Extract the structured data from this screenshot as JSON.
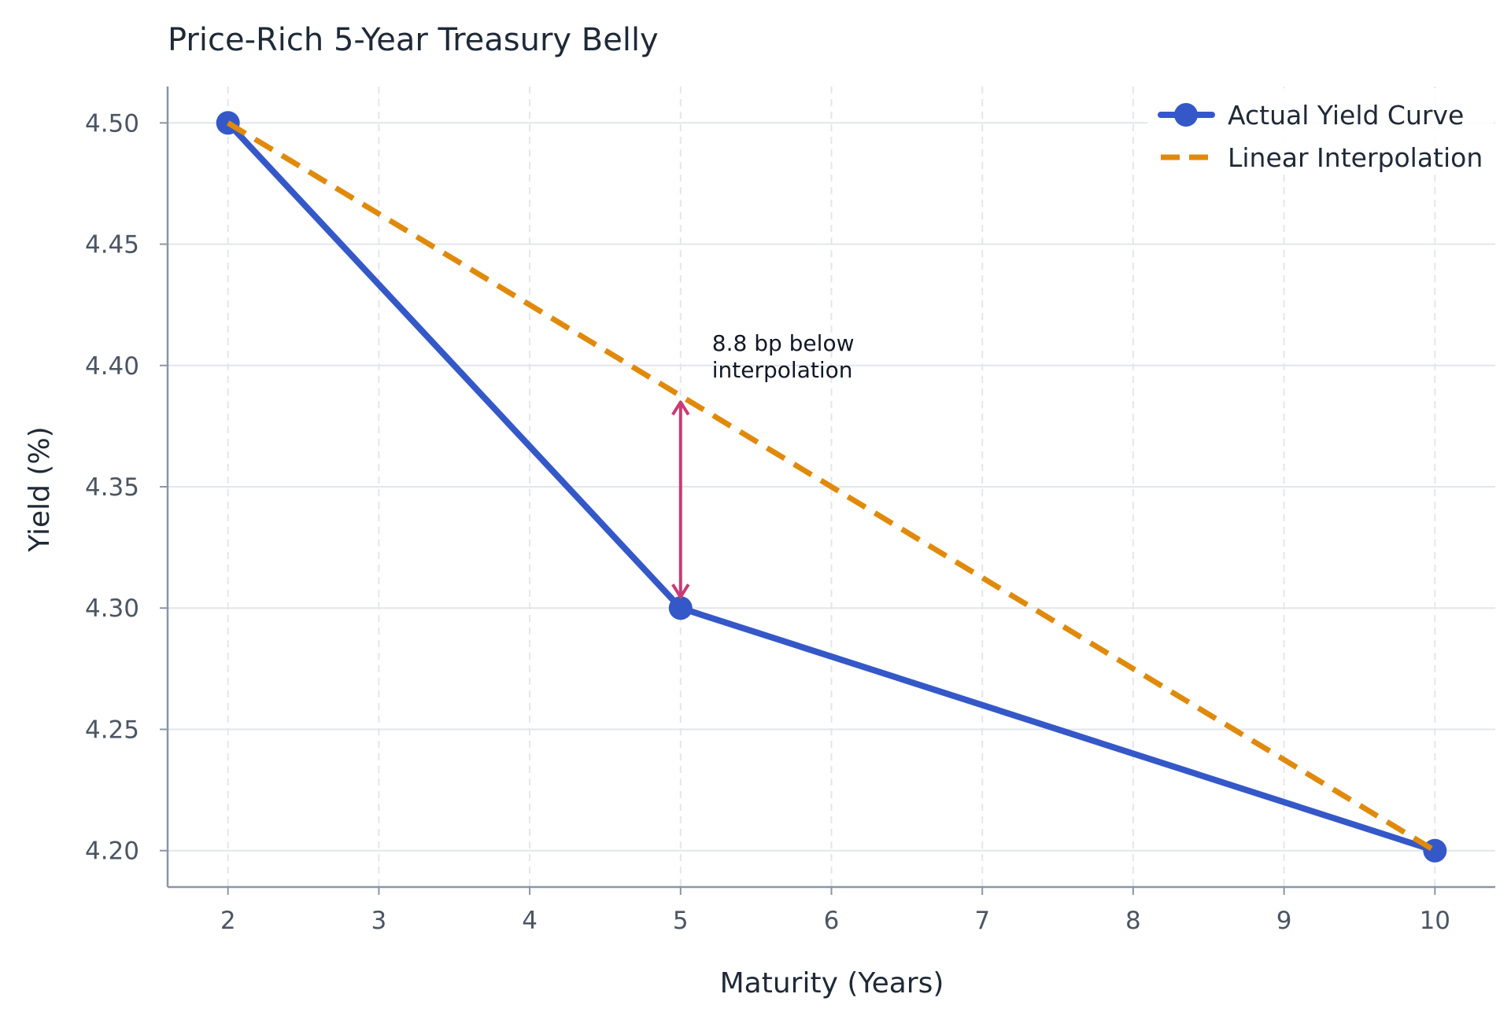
{
  "chart_data": {
    "type": "line",
    "title": "Price-Rich 5-Year Treasury Belly",
    "xlabel": "Maturity (Years)",
    "ylabel": "Yield (%)",
    "xlim": [
      1.6,
      10.4
    ],
    "ylim": [
      4.185,
      4.515
    ],
    "xticks": [
      2,
      3,
      4,
      5,
      6,
      7,
      8,
      9,
      10
    ],
    "yticks": [
      4.2,
      4.25,
      4.3,
      4.35,
      4.4,
      4.45,
      4.5
    ],
    "grid": true,
    "legend_position": "top-right",
    "series": [
      {
        "name": "Actual Yield Curve",
        "style": "solid-markers",
        "color": "#3558c8",
        "x": [
          2,
          5,
          10
        ],
        "y": [
          4.5,
          4.3,
          4.2
        ]
      },
      {
        "name": "Linear Interpolation",
        "style": "dashed",
        "color": "#e08a0b",
        "x": [
          2,
          10
        ],
        "y": [
          4.5,
          4.2
        ]
      }
    ],
    "annotations": [
      {
        "text_lines": [
          "8.8 bp below",
          "interpolation"
        ],
        "arrow_x": 5,
        "arrow_from_y": 4.3,
        "arrow_to_y": 4.3875,
        "color": "#c93b74"
      }
    ]
  }
}
